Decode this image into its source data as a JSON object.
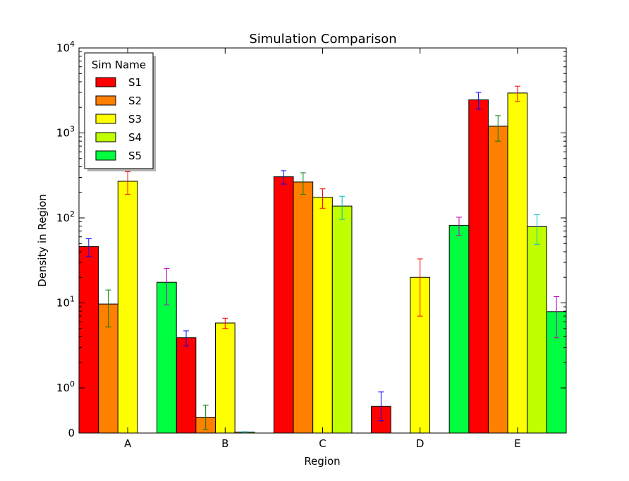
{
  "chart_data": {
    "type": "bar",
    "title": "Simulation Comparison",
    "xlabel": "Region",
    "ylabel": "Density in Region",
    "yscale": "symlog",
    "ylim": [
      0,
      10000
    ],
    "yticks": [
      {
        "base": "0",
        "exp": ""
      },
      {
        "base": "10",
        "exp": "0"
      },
      {
        "base": "10",
        "exp": "1"
      },
      {
        "base": "10",
        "exp": "2"
      },
      {
        "base": "10",
        "exp": "3"
      },
      {
        "base": "10",
        "exp": "4"
      }
    ],
    "categories": [
      "A",
      "B",
      "C",
      "D",
      "E"
    ],
    "legend": {
      "title": "Sim Name",
      "position": "upper-left",
      "shadow": true
    },
    "grid": false,
    "series": [
      {
        "name": "S1",
        "color": "#ff0000",
        "errorbar_color": "#0000ff",
        "values": [
          46,
          3.9,
          305,
          0.59,
          2450
        ],
        "errors": [
          11,
          0.8,
          55,
          0.32,
          550
        ]
      },
      {
        "name": "S2",
        "color": "#ff8000",
        "errorbar_color": "#008000",
        "values": [
          9.7,
          0.35,
          265,
          0,
          1200
        ],
        "errors": [
          4.5,
          0.27,
          75,
          0,
          400
        ]
      },
      {
        "name": "S3",
        "color": "#ffff00",
        "errorbar_color": "#ff0000",
        "values": [
          270,
          5.8,
          175,
          20,
          2950
        ],
        "errors": [
          80,
          0.8,
          45,
          13,
          600
        ]
      },
      {
        "name": "S4",
        "color": "#bfff00",
        "errorbar_color": "#00bfbf",
        "values": [
          0,
          0.02,
          138,
          0,
          79
        ],
        "errors": [
          0,
          0.01,
          42,
          0,
          30
        ]
      },
      {
        "name": "S5",
        "color": "#00ff40",
        "errorbar_color": "#bf00bf",
        "values": [
          17.5,
          0,
          0,
          82,
          7.9
        ],
        "errors": [
          8,
          0,
          0,
          20,
          4
        ]
      }
    ]
  }
}
